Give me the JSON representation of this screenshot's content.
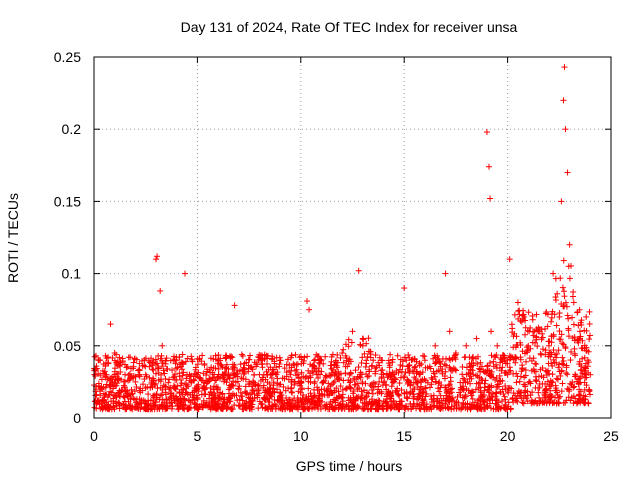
{
  "chart_data": {
    "type": "scatter",
    "title": "Day 131 of 2024, Rate Of TEC Index for receiver unsa",
    "xlabel": "GPS time / hours",
    "ylabel": "ROTI / TECUs",
    "xlim": [
      0,
      25
    ],
    "ylim": [
      0,
      0.25
    ],
    "xticks": [
      0,
      5,
      10,
      15,
      20,
      25
    ],
    "xtick_labels": [
      "0",
      "5",
      "10",
      "15",
      "20",
      "25"
    ],
    "yticks": [
      0,
      0.05,
      0.1,
      0.15,
      0.2,
      0.25
    ],
    "ytick_labels": [
      "0",
      "0.05",
      "0.1",
      "0.15",
      "0.2",
      "0.25"
    ],
    "grid": true,
    "marker": "+",
    "color": "#ff0000",
    "series": [
      {
        "name": "ROTI",
        "note": "dense band approx 0.005-0.06 across 0-24 h; selected visible points listed",
        "x": [
          0.1,
          0.3,
          0.6,
          0.8,
          1.0,
          1.5,
          2.0,
          2.5,
          3.0,
          3.05,
          3.2,
          3.3,
          4.0,
          4.4,
          4.5,
          5.0,
          5.5,
          6.0,
          6.5,
          6.8,
          7.0,
          7.5,
          8.0,
          8.5,
          9.0,
          9.5,
          10.0,
          10.3,
          10.4,
          11.0,
          11.5,
          12.0,
          12.5,
          12.8,
          13.0,
          13.5,
          14.0,
          14.5,
          15.0,
          15.1,
          15.5,
          16.0,
          16.5,
          17.0,
          17.2,
          17.5,
          18.0,
          18.5,
          19.0,
          19.1,
          19.15,
          19.2,
          19.5,
          20.0,
          20.1,
          20.5,
          20.8,
          21.0,
          21.5,
          22.0,
          22.2,
          22.5,
          22.6,
          22.7,
          22.75,
          22.8,
          22.9,
          23.0,
          23.2,
          23.5,
          23.8,
          24.0
        ],
        "y": [
          0.02,
          0.04,
          0.03,
          0.065,
          0.045,
          0.03,
          0.025,
          0.03,
          0.11,
          0.112,
          0.088,
          0.05,
          0.04,
          0.1,
          0.03,
          0.03,
          0.025,
          0.04,
          0.03,
          0.078,
          0.02,
          0.025,
          0.03,
          0.02,
          0.015,
          0.03,
          0.025,
          0.081,
          0.075,
          0.04,
          0.03,
          0.045,
          0.06,
          0.102,
          0.05,
          0.04,
          0.03,
          0.03,
          0.09,
          0.04,
          0.035,
          0.04,
          0.05,
          0.1,
          0.06,
          0.045,
          0.05,
          0.055,
          0.198,
          0.174,
          0.152,
          0.06,
          0.05,
          0.03,
          0.11,
          0.08,
          0.07,
          0.05,
          0.06,
          0.05,
          0.1,
          0.07,
          0.15,
          0.22,
          0.243,
          0.2,
          0.17,
          0.12,
          0.08,
          0.06,
          0.07,
          0.03
        ]
      }
    ]
  }
}
